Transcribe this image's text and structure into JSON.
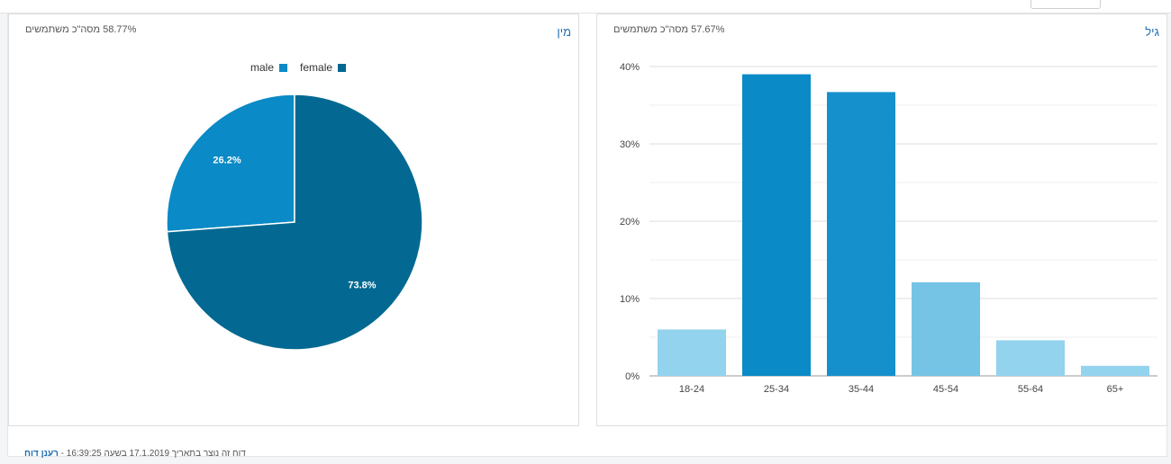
{
  "gender_panel": {
    "title": "מין",
    "metric": "58.77% מסה\"כ משתמשים",
    "legend": [
      {
        "label": "male",
        "color": "#0a8ac6"
      },
      {
        "label": "female",
        "color": "#046992"
      }
    ]
  },
  "age_panel": {
    "title": "גיל",
    "metric": "57.67% מסה\"כ משתמשים"
  },
  "footer": {
    "text": "דוח זה נוצר בתאריך 17.1.2019 בשעה 16:39:25 - ",
    "refresh_link": "רענן דוח"
  },
  "chart_data": [
    {
      "type": "pie",
      "categories": [
        "male",
        "female"
      ],
      "values": [
        26.2,
        73.8
      ],
      "labels": [
        "26.2%",
        "73.8%"
      ],
      "colors": [
        "#0a8ac6",
        "#046992"
      ],
      "legend_position": "top"
    },
    {
      "type": "bar",
      "categories": [
        "18-24",
        "25-34",
        "35-44",
        "45-54",
        "55-64",
        "65+"
      ],
      "values": [
        6.0,
        39.0,
        36.7,
        12.1,
        4.6,
        1.3
      ],
      "colors": [
        "#93d3ee",
        "#0a8ac6",
        "#1690cc",
        "#75c4e6",
        "#93d3ee",
        "#93d3ee"
      ],
      "ylim": [
        0,
        40
      ],
      "yticks": [
        "0%",
        "10%",
        "20%",
        "30%",
        "40%"
      ],
      "grid": true
    }
  ]
}
